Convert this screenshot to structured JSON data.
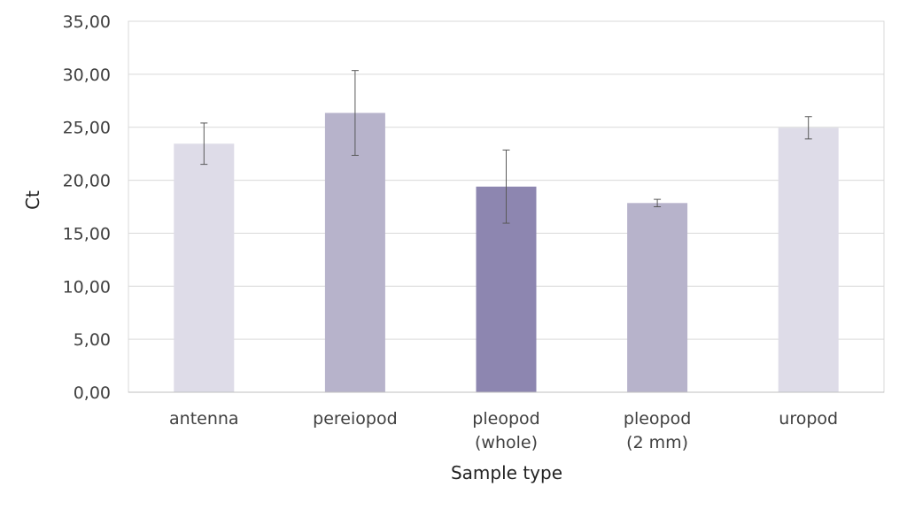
{
  "chart_data": {
    "type": "bar",
    "title": "",
    "xlabel": "Sample type",
    "ylabel": "Ct",
    "ylim": [
      0,
      35
    ],
    "yticks": [
      "0,00",
      "5,00",
      "10,00",
      "15,00",
      "20,00",
      "25,00",
      "30,00",
      "35,00"
    ],
    "grid": true,
    "categories": [
      [
        "antenna"
      ],
      [
        "pereiopod"
      ],
      [
        "pleopod",
        "(whole)"
      ],
      [
        "pleopod",
        "(2 mm)"
      ],
      [
        "uropod"
      ]
    ],
    "values": [
      23.45,
      26.35,
      19.4,
      17.85,
      24.95
    ],
    "errors": [
      1.95,
      4.0,
      3.45,
      0.35,
      1.05
    ],
    "colors": [
      "#dedce8",
      "#b7b3cb",
      "#8d86b0",
      "#b7b3cb",
      "#dedce8"
    ]
  }
}
